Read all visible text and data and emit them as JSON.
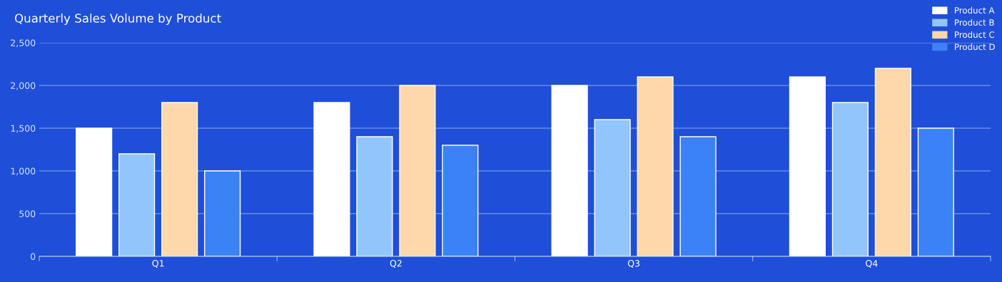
{
  "chart_data": {
    "type": "bar",
    "title": "Quarterly Sales Volume by Product",
    "categories": [
      "Q1",
      "Q2",
      "Q3",
      "Q4"
    ],
    "series": [
      {
        "name": "Product A",
        "color": "#ffffff",
        "values": [
          1500,
          1800,
          2000,
          2100
        ]
      },
      {
        "name": "Product B",
        "color": "#93c5fd",
        "values": [
          1200,
          1400,
          1600,
          1800
        ]
      },
      {
        "name": "Product C",
        "color": "#fed7aa",
        "values": [
          1800,
          2000,
          2100,
          2200
        ]
      },
      {
        "name": "Product D",
        "color": "#3b82f6",
        "values": [
          1000,
          1300,
          1400,
          1500
        ]
      }
    ],
    "ylim": [
      0,
      2500
    ],
    "yticks": [
      0,
      {
        "value": 500,
        "label": "500"
      },
      {
        "value": 1000,
        "label": "1,000"
      },
      {
        "value": 1500,
        "label": "1,500"
      },
      {
        "value": 2000,
        "label": "2,000"
      },
      {
        "value": 2500,
        "label": "2,500"
      }
    ],
    "grid": "y",
    "legend": "top right"
  }
}
